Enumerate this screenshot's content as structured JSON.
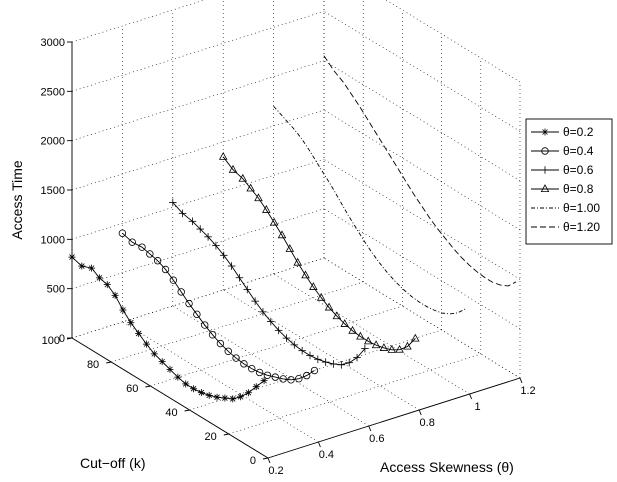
{
  "chart_data": {
    "type": "line3d",
    "title": "",
    "zlabel": "Access Time",
    "ylabel": "Cut−off (k)",
    "xlabel": "Access Skewness (θ)",
    "zlim": [
      0,
      3000
    ],
    "ylim": [
      0,
      100
    ],
    "xlim": [
      0.2,
      1.2
    ],
    "z_ticks": [
      "0",
      "500",
      "1000",
      "1500",
      "2000",
      "2500",
      "3000"
    ],
    "y_ticks": [
      "0",
      "20",
      "40",
      "60",
      "80",
      "100"
    ],
    "x_ticks": [
      "0.2",
      "0.4",
      "0.6",
      "0.8",
      "1",
      "1.2"
    ],
    "grid": true,
    "legend_position": "right",
    "series": [
      {
        "name": "θ=0.2",
        "theta": 0.2,
        "marker": "star",
        "dash": "",
        "k": [
          100,
          95,
          90,
          86,
          82,
          78,
          74,
          70,
          66,
          62,
          58,
          54,
          50,
          46,
          42,
          38,
          34,
          30,
          26,
          22,
          18,
          14,
          10,
          6,
          2
        ],
        "time": [
          820,
          790,
          830,
          780,
          760,
          700,
          600,
          520,
          460,
          400,
          350,
          320,
          290,
          260,
          240,
          240,
          250,
          270,
          300,
          340,
          380,
          450,
          540,
          650,
          760
        ]
      },
      {
        "name": "θ=0.4",
        "theta": 0.4,
        "marker": "circle",
        "dash": "",
        "k": [
          100,
          95,
          90,
          86,
          82,
          78,
          74,
          70,
          66,
          62,
          58,
          54,
          50,
          46,
          42,
          38,
          34,
          30,
          26,
          22,
          18,
          14,
          10,
          6,
          2
        ],
        "time": [
          900,
          870,
          880,
          860,
          840,
          800,
          740,
          670,
          600,
          540,
          480,
          430,
          390,
          360,
          340,
          330,
          330,
          340,
          360,
          390,
          420,
          460,
          520,
          600,
          700
        ]
      },
      {
        "name": "θ=0.6",
        "theta": 0.6,
        "marker": "plus",
        "dash": "",
        "k": [
          100,
          95,
          90,
          86,
          82,
          78,
          74,
          70,
          66,
          62,
          58,
          54,
          50,
          46,
          42,
          38,
          34,
          30,
          26,
          22,
          18,
          14,
          10,
          6,
          2
        ],
        "time": [
          1050,
          1000,
          980,
          950,
          920,
          880,
          830,
          770,
          700,
          630,
          560,
          500,
          450,
          410,
          380,
          360,
          350,
          350,
          360,
          380,
          410,
          450,
          520,
          620,
          760
        ]
      },
      {
        "name": "θ=0.8",
        "theta": 0.8,
        "marker": "triangle",
        "dash": "",
        "k": [
          100,
          95,
          90,
          86,
          82,
          78,
          74,
          70,
          66,
          62,
          58,
          54,
          50,
          46,
          42,
          38,
          34,
          30,
          26,
          22,
          18,
          14,
          10,
          6,
          2
        ],
        "time": [
          1350,
          1280,
          1250,
          1200,
          1150,
          1080,
          1000,
          920,
          830,
          740,
          660,
          590,
          530,
          480,
          440,
          410,
          390,
          380,
          380,
          390,
          410,
          440,
          490,
          570,
          700
        ]
      },
      {
        "name": "θ=1.00",
        "theta": 1.0,
        "marker": "none",
        "dash": "4 2 1 2",
        "k": [
          100,
          95,
          90,
          86,
          82,
          78,
          74,
          70,
          66,
          62,
          58,
          54,
          50,
          46,
          42,
          38,
          34,
          30,
          26,
          22,
          18,
          14,
          10,
          6,
          2
        ],
        "time": [
          1700,
          1650,
          1600,
          1550,
          1480,
          1400,
          1320,
          1240,
          1150,
          1060,
          980,
          900,
          830,
          770,
          720,
          680,
          650,
          630,
          620,
          620,
          630,
          650,
          690,
          750,
          840
        ]
      },
      {
        "name": "θ=1.20",
        "theta": 1.2,
        "marker": "none",
        "dash": "6 3",
        "k": [
          100,
          95,
          90,
          86,
          82,
          78,
          74,
          70,
          66,
          62,
          58,
          54,
          50,
          46,
          42,
          38,
          34,
          30,
          26,
          22,
          18,
          14,
          10,
          6,
          2
        ],
        "time": [
          2050,
          1960,
          1900,
          1830,
          1760,
          1680,
          1600,
          1520,
          1440,
          1360,
          1280,
          1200,
          1130,
          1060,
          1000,
          950,
          900,
          860,
          830,
          810,
          800,
          800,
          820,
          860,
          950
        ]
      }
    ]
  }
}
